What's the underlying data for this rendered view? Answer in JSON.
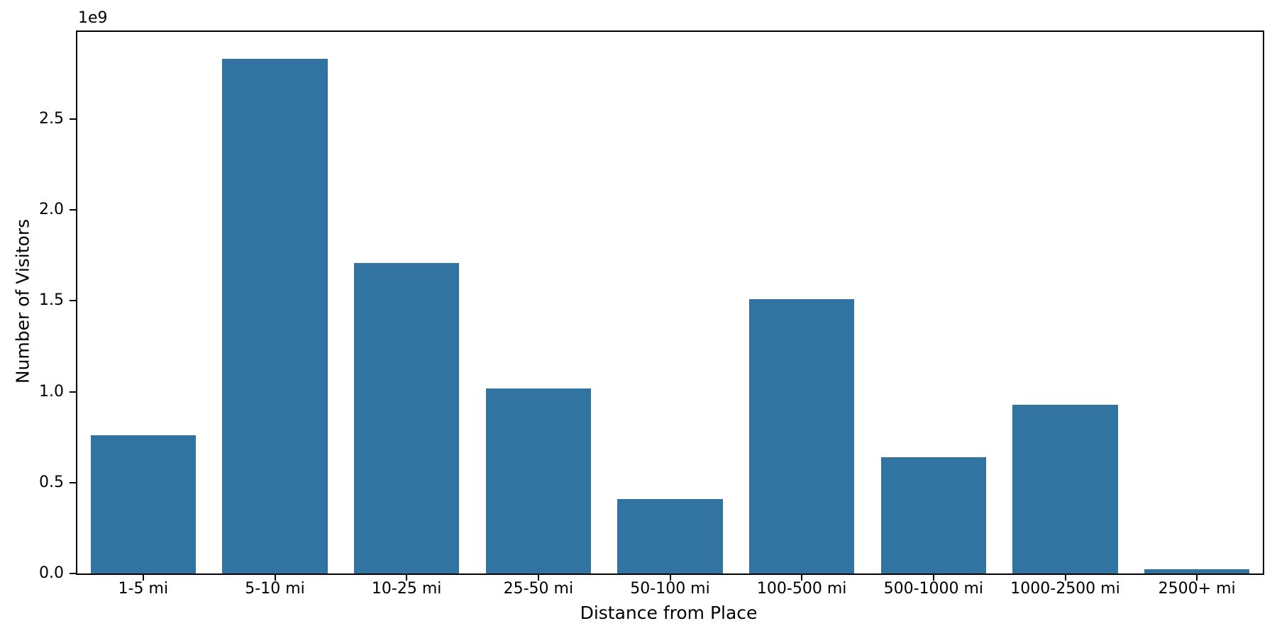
{
  "chart_data": {
    "type": "bar",
    "title": "",
    "xlabel": "Distance from Place",
    "ylabel": "Number of Visitors",
    "offset_text": "1e9",
    "categories": [
      "1-5 mi",
      "5-10 mi",
      "10-25 mi",
      "25-50 mi",
      "50-100 mi",
      "100-500 mi",
      "500-1000 mi",
      "1000-2500 mi",
      "2500+ mi"
    ],
    "values": [
      760000000,
      2830000000,
      1710000000,
      1020000000,
      410000000,
      1510000000,
      640000000,
      930000000,
      23000000
    ],
    "ylim": [
      0,
      2980000000
    ],
    "ytick_values": [
      0,
      500000000,
      1000000000,
      1500000000,
      2000000000,
      2500000000
    ],
    "ytick_labels": [
      "0.0",
      "0.5",
      "1.0",
      "1.5",
      "2.0",
      "2.5"
    ],
    "bar_color": "#3274a1",
    "axis_color": "#000000",
    "background_color": "#ffffff",
    "grid": false,
    "legend": null
  }
}
